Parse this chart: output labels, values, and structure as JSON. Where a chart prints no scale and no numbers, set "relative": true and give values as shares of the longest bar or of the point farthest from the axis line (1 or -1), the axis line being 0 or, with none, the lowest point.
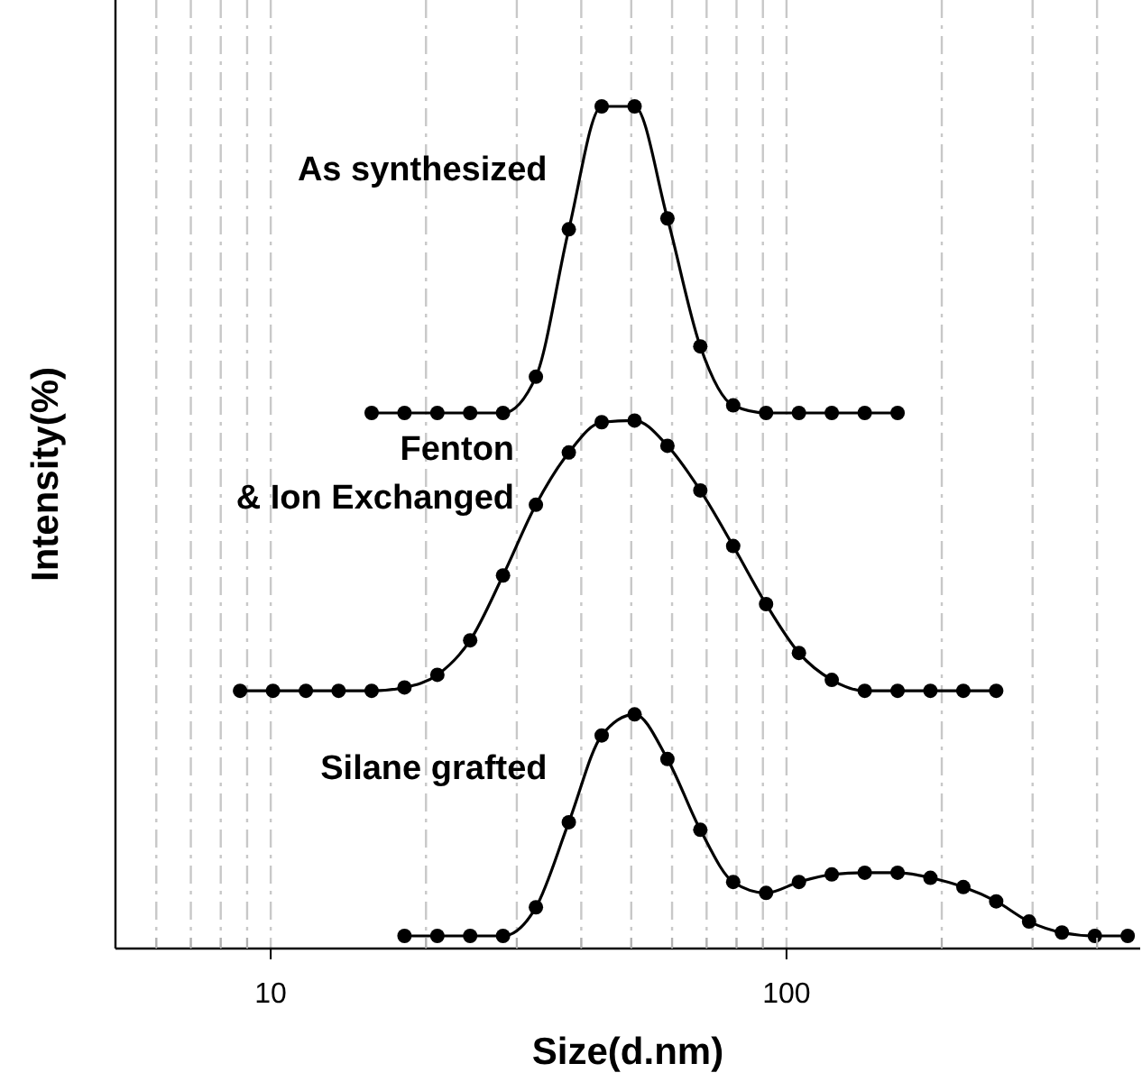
{
  "chart_data": {
    "type": "line",
    "xlabel": "Size(d.nm)",
    "ylabel": "Intensity(%)",
    "log": "x",
    "relative": true,
    "grid": "x",
    "marker": "circle",
    "line_style": "solid",
    "xlim": [
      5,
      485
    ],
    "xticks": [
      {
        "value": 6,
        "label": null
      },
      {
        "value": 7,
        "label": null
      },
      {
        "value": 8,
        "label": null
      },
      {
        "value": 9,
        "label": null
      },
      10,
      {
        "value": 20,
        "label": null
      },
      {
        "value": 30,
        "label": null
      },
      {
        "value": 40,
        "label": null
      },
      {
        "value": 50,
        "label": null
      },
      {
        "value": 60,
        "label": null
      },
      {
        "value": 70,
        "label": null
      },
      {
        "value": 80,
        "label": null
      },
      {
        "value": 90,
        "label": null
      },
      100,
      {
        "value": 200,
        "label": null
      },
      {
        "value": 300,
        "label": null
      },
      {
        "value": 400,
        "label": null
      }
    ],
    "series": [
      {
        "name": "As synthesized",
        "color": "#000000",
        "x": [
          15.69,
          18.17,
          21.04,
          24.36,
          28.21,
          32.67,
          37.84,
          43.82,
          50.75,
          58.77,
          68.06,
          78.82,
          91.28,
          105.7,
          122.4,
          141.8,
          164.2
        ],
        "values": [
          0.636,
          0.636,
          0.636,
          0.636,
          0.636,
          0.679,
          0.854,
          1,
          1,
          0.867,
          0.715,
          0.645,
          0.636,
          0.636,
          0.636,
          0.636,
          0.636
        ]
      },
      {
        "name": "Fenton\n& Ion Exchanged",
        "color": "#000000",
        "x": [
          8.721,
          10.1,
          11.7,
          13.54,
          15.69,
          18.17,
          21.04,
          24.36,
          28.21,
          32.67,
          37.84,
          43.82,
          50.75,
          58.77,
          68.06,
          78.82,
          91.28,
          105.7,
          122.4,
          141.8,
          164.2,
          190.1,
          220.2,
          255
        ],
        "values": [
          0.306,
          0.306,
          0.306,
          0.306,
          0.306,
          0.31,
          0.325,
          0.366,
          0.443,
          0.527,
          0.589,
          0.625,
          0.627,
          0.597,
          0.544,
          0.478,
          0.409,
          0.351,
          0.319,
          0.306,
          0.306,
          0.306,
          0.306,
          0.306
        ]
      },
      {
        "name": "Silane grafted",
        "color": "#000000",
        "x": [
          18.17,
          21.04,
          24.36,
          28.21,
          32.67,
          37.84,
          43.82,
          50.75,
          58.77,
          68.06,
          78.82,
          91.28,
          105.7,
          122.4,
          141.8,
          164.2,
          190.1,
          220.2,
          255,
          295.3,
          342,
          396.1,
          458.7
        ],
        "values": [
          0.015,
          0.015,
          0.015,
          0.015,
          0.049,
          0.15,
          0.253,
          0.278,
          0.225,
          0.141,
          0.079,
          0.066,
          0.079,
          0.088,
          0.09,
          0.09,
          0.084,
          0.073,
          0.056,
          0.032,
          0.019,
          0.015,
          0.015
        ]
      }
    ]
  }
}
